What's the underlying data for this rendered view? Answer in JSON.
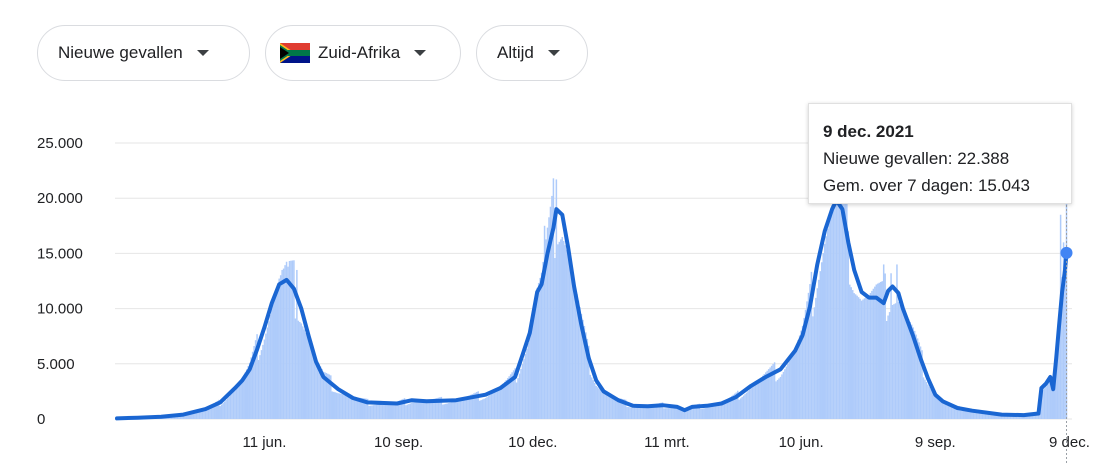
{
  "filters": {
    "metric": "Nieuwe gevallen",
    "country": "Zuid-Afrika",
    "range": "Altijd"
  },
  "tooltip": {
    "date": "9 dec. 2021",
    "new_cases_label": "Nieuwe gevallen: 22.388",
    "avg_label": "Gem. over 7 dagen: 15.043"
  },
  "colors": {
    "line": "#1a66d2",
    "bars": "#aecbfa",
    "bar_spikes": "#a3c3f7"
  },
  "chart_data": {
    "type": "bar+line",
    "title": "",
    "xlabel": "",
    "ylabel": "",
    "ylim": [
      0,
      25000
    ],
    "yticks": [
      "0",
      "5.000",
      "10.000",
      "15.000",
      "20.000",
      "25.000"
    ],
    "ytick_values": [
      0,
      5000,
      10000,
      15000,
      20000,
      25000
    ],
    "xticks": [
      "11 jun.",
      "10 sep.",
      "10 dec.",
      "11 mrt.",
      "10 jun.",
      "9 sep.",
      "9 dec."
    ],
    "xtick_days": [
      100,
      191,
      282,
      373,
      464,
      555,
      646
    ],
    "x_unit": "days since 2020-03-03",
    "grid": true,
    "series": [
      {
        "name": "Gem. over 7 dagen",
        "type": "line",
        "points": [
          [
            0,
            50
          ],
          [
            14,
            120
          ],
          [
            30,
            200
          ],
          [
            45,
            400
          ],
          [
            60,
            900
          ],
          [
            70,
            1500
          ],
          [
            80,
            2800
          ],
          [
            85,
            3500
          ],
          [
            90,
            4500
          ],
          [
            95,
            6300
          ],
          [
            100,
            8300
          ],
          [
            105,
            10500
          ],
          [
            110,
            12200
          ],
          [
            115,
            12600
          ],
          [
            120,
            11800
          ],
          [
            125,
            10000
          ],
          [
            130,
            7500
          ],
          [
            135,
            5200
          ],
          [
            140,
            3800
          ],
          [
            150,
            2700
          ],
          [
            160,
            1900
          ],
          [
            170,
            1500
          ],
          [
            190,
            1400
          ],
          [
            200,
            1700
          ],
          [
            210,
            1600
          ],
          [
            230,
            1700
          ],
          [
            250,
            2200
          ],
          [
            260,
            2800
          ],
          [
            270,
            3800
          ],
          [
            275,
            5800
          ],
          [
            280,
            7800
          ],
          [
            285,
            11500
          ],
          [
            288,
            12200
          ],
          [
            292,
            15000
          ],
          [
            296,
            17300
          ],
          [
            298,
            19000
          ],
          [
            302,
            18500
          ],
          [
            306,
            15500
          ],
          [
            310,
            12000
          ],
          [
            315,
            8500
          ],
          [
            320,
            5500
          ],
          [
            325,
            3500
          ],
          [
            330,
            2500
          ],
          [
            340,
            1700
          ],
          [
            350,
            1200
          ],
          [
            360,
            1150
          ],
          [
            370,
            1250
          ],
          [
            380,
            1100
          ],
          [
            385,
            800
          ],
          [
            390,
            1100
          ],
          [
            400,
            1200
          ],
          [
            410,
            1400
          ],
          [
            420,
            2000
          ],
          [
            430,
            3000
          ],
          [
            440,
            3800
          ],
          [
            450,
            4500
          ],
          [
            460,
            6200
          ],
          [
            465,
            7600
          ],
          [
            470,
            10200
          ],
          [
            475,
            14000
          ],
          [
            480,
            17000
          ],
          [
            485,
            19000
          ],
          [
            488,
            19800
          ],
          [
            492,
            19000
          ],
          [
            496,
            16000
          ],
          [
            500,
            13500
          ],
          [
            505,
            11500
          ],
          [
            510,
            11000
          ],
          [
            515,
            11000
          ],
          [
            520,
            10500
          ],
          [
            523,
            11600
          ],
          [
            526,
            12000
          ],
          [
            530,
            11400
          ],
          [
            533,
            10000
          ],
          [
            540,
            7500
          ],
          [
            545,
            5500
          ],
          [
            550,
            3700
          ],
          [
            555,
            2200
          ],
          [
            560,
            1600
          ],
          [
            570,
            1000
          ],
          [
            580,
            750
          ],
          [
            600,
            400
          ],
          [
            615,
            350
          ],
          [
            625,
            500
          ],
          [
            627,
            2800
          ],
          [
            630,
            3200
          ],
          [
            633,
            3800
          ],
          [
            635,
            2700
          ],
          [
            637,
            5500
          ],
          [
            639,
            8500
          ],
          [
            641,
            11500
          ],
          [
            643,
            13500
          ],
          [
            644,
            15043
          ]
        ]
      },
      {
        "name": "Nieuwe gevallen",
        "type": "bar",
        "spikes": [
          [
            112,
            13500
          ],
          [
            116,
            13800
          ],
          [
            122,
            13500
          ],
          [
            132,
            7000
          ],
          [
            290,
            17500
          ],
          [
            296,
            21800
          ],
          [
            298,
            21700
          ],
          [
            486,
            19800
          ],
          [
            496,
            17000
          ],
          [
            520,
            14000
          ],
          [
            525,
            13200
          ],
          [
            529,
            14000
          ],
          [
            640,
            18500
          ],
          [
            642,
            16000
          ],
          [
            644,
            22388
          ]
        ]
      }
    ]
  }
}
